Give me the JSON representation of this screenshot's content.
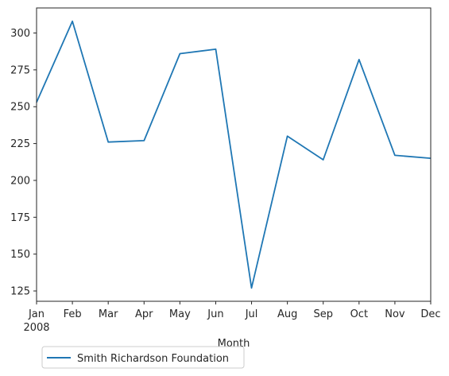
{
  "chart_data": {
    "type": "line",
    "x": [
      "Jan",
      "Feb",
      "Mar",
      "Apr",
      "May",
      "Jun",
      "Jul",
      "Aug",
      "Sep",
      "Oct",
      "Nov",
      "Dec"
    ],
    "year_label": "2008",
    "series": [
      {
        "name": "Smith Richardson Foundation",
        "color": "#1f77b4",
        "values": [
          253,
          308,
          226,
          227,
          286,
          289,
          127,
          230,
          214,
          282,
          217,
          215
        ]
      }
    ],
    "xlabel": "Month",
    "ylabel": "",
    "ylim": [
      118,
      317
    ],
    "yticks": [
      125,
      150,
      175,
      200,
      225,
      250,
      275,
      300
    ],
    "grid": false,
    "legend_position": "bottom-left, below axes"
  }
}
